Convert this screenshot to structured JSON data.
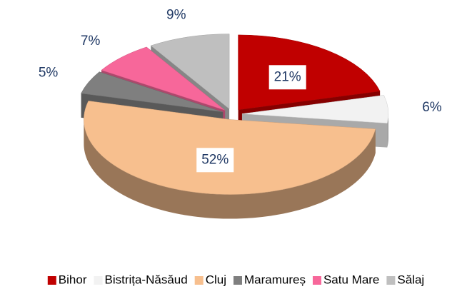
{
  "chart_data": {
    "type": "pie",
    "categories": [
      "Bihor",
      "Bistrița-Năsăud",
      "Cluj",
      "Maramureș",
      "Satu Mare",
      "Sălaj"
    ],
    "values": [
      21,
      6,
      52,
      5,
      7,
      9
    ],
    "value_labels": [
      "21%",
      "6%",
      "52%",
      "5%",
      "7%",
      "9%"
    ],
    "colors": [
      "#c00000",
      "#f2f2f2",
      "#f7bf8e",
      "#7f7f7f",
      "#f7679a",
      "#bfbfbf"
    ],
    "legend": "bottom"
  }
}
